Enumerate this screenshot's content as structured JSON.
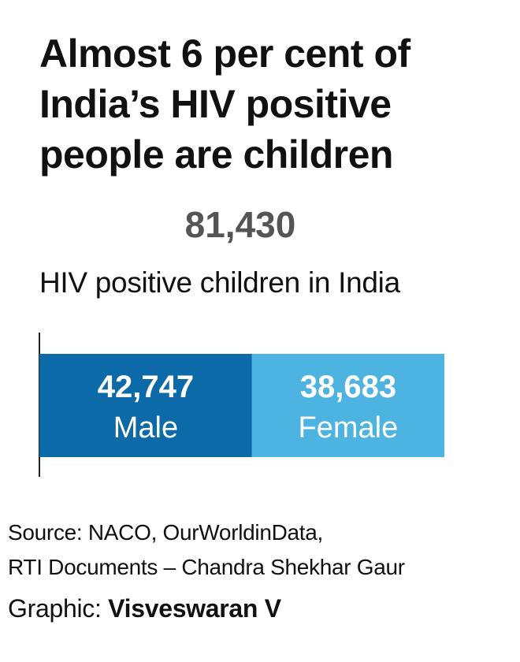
{
  "title_lines": [
    "Almost 6 per cent of",
    "India’s HIV positive",
    "people are children"
  ],
  "total": {
    "value": "81,430",
    "caption": "HIV positive children in India"
  },
  "chart_data": {
    "type": "bar",
    "orientation": "horizontal-stacked",
    "total": 81430,
    "segments": [
      {
        "value": 42747,
        "value_label": "42,747",
        "label": "Male",
        "color": "#0d6aa8"
      },
      {
        "value": 38683,
        "value_label": "38,683",
        "label": "Female",
        "color": "#4db3e0"
      }
    ]
  },
  "source_lines": [
    "Source: NACO, OurWorldinData,",
    "RTI Documents – Chandra Shekhar Gaur"
  ],
  "credit": {
    "prefix": "Graphic: ",
    "name": "Visveswaran V"
  }
}
